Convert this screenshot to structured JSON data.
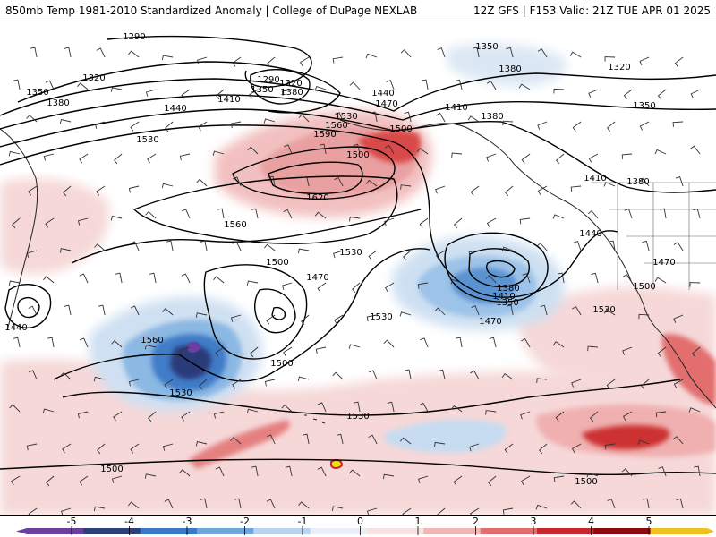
{
  "header": {
    "title_left": "850mb Temp 1981-2010 Standardized Anomaly | College of DuPage NEXLAB",
    "title_right": "12Z GFS | F153 Valid: 21Z TUE APR 01 2025"
  },
  "contour_labels": [
    {
      "id": "c1290a",
      "text": "1290"
    },
    {
      "id": "c1290b",
      "text": "1290"
    },
    {
      "id": "c1320a",
      "text": "1320"
    },
    {
      "id": "c1320b",
      "text": "1320"
    },
    {
      "id": "c1320c",
      "text": "1320"
    },
    {
      "id": "c1350a",
      "text": "1350"
    },
    {
      "id": "c1350b",
      "text": "1350"
    },
    {
      "id": "c1350c",
      "text": "1350"
    },
    {
      "id": "c1350d",
      "text": "1350"
    },
    {
      "id": "c1350e",
      "text": "1350"
    },
    {
      "id": "c1380a",
      "text": "1380"
    },
    {
      "id": "c1380b",
      "text": "1380"
    },
    {
      "id": "c1380c",
      "text": "1380"
    },
    {
      "id": "c1380d",
      "text": "1380"
    },
    {
      "id": "c1380e",
      "text": "1380"
    },
    {
      "id": "c1380f",
      "text": "1380"
    },
    {
      "id": "c1410a",
      "text": "1410"
    },
    {
      "id": "c1410b",
      "text": "1410"
    },
    {
      "id": "c1410c",
      "text": "1410"
    },
    {
      "id": "c1410d",
      "text": "1410"
    },
    {
      "id": "c1440a",
      "text": "1440"
    },
    {
      "id": "c1440b",
      "text": "1440"
    },
    {
      "id": "c1440c",
      "text": "1440"
    },
    {
      "id": "c1440d",
      "text": "1440"
    },
    {
      "id": "c1470a",
      "text": "1470"
    },
    {
      "id": "c1470b",
      "text": "1470"
    },
    {
      "id": "c1470c",
      "text": "1470"
    },
    {
      "id": "c1470d",
      "text": "1470"
    },
    {
      "id": "c1500a",
      "text": "1500"
    },
    {
      "id": "c1500b",
      "text": "1500"
    },
    {
      "id": "c1500c",
      "text": "1500"
    },
    {
      "id": "c1500d",
      "text": "1500"
    },
    {
      "id": "c1500e",
      "text": "1500"
    },
    {
      "id": "c1500f",
      "text": "1500"
    },
    {
      "id": "c1500g",
      "text": "1500"
    },
    {
      "id": "c1530a",
      "text": "1530"
    },
    {
      "id": "c1530b",
      "text": "1530"
    },
    {
      "id": "c1530c",
      "text": "1530"
    },
    {
      "id": "c1530d",
      "text": "1530"
    },
    {
      "id": "c1530e",
      "text": "1530"
    },
    {
      "id": "c1530f",
      "text": "1530"
    },
    {
      "id": "c1530g",
      "text": "1530"
    },
    {
      "id": "c1560a",
      "text": "1560"
    },
    {
      "id": "c1560b",
      "text": "1560"
    },
    {
      "id": "c1560c",
      "text": "1560"
    },
    {
      "id": "c1590a",
      "text": "1590"
    },
    {
      "id": "c1620a",
      "text": "1620"
    }
  ],
  "colorbar": {
    "ticks": [
      "-5",
      "-4",
      "-3",
      "-2",
      "-1",
      "0",
      "1",
      "2",
      "3",
      "4",
      "5"
    ],
    "colors": [
      "#6a3fa0",
      "#2b3f7a",
      "#3a78c8",
      "#6ea6dc",
      "#b9d4ee",
      "#e8eff8",
      "#f7e1e1",
      "#f2b6b6",
      "#e06e6e",
      "#c8282d",
      "#8c0a0f",
      "#f0c020"
    ]
  },
  "colors": {
    "warm_light": "#f6d8d8",
    "warm_mid": "#f0b4b4",
    "warm_strong": "#e37a7a",
    "warm_deep": "#c8282d",
    "cool_light": "#d3e3f3",
    "cool_mid": "#94bde6",
    "cool_strong": "#4a86cd",
    "cool_deep": "#2b3a7a",
    "purple": "#6a3fa0",
    "yellow": "#f2e200"
  }
}
